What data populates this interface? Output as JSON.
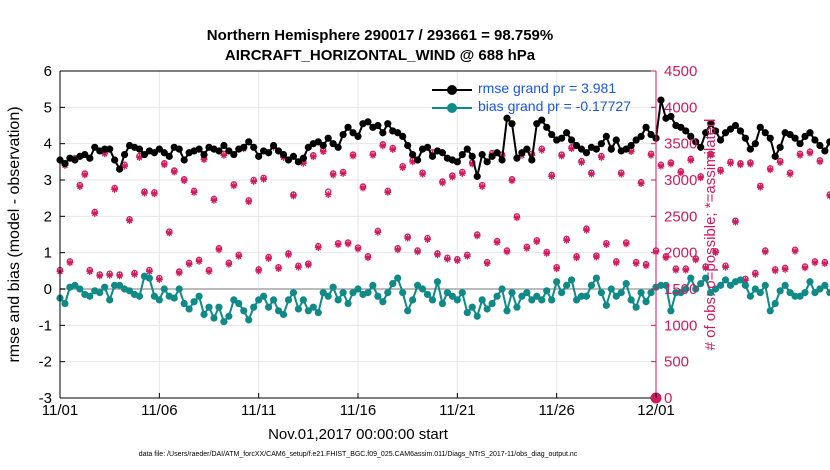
{
  "titles": {
    "line1": "Northern Hemisphere 290017 / 293661 = 98.759%",
    "line2": "AIRCRAFT_HORIZONTAL_WIND @ 688 hPa"
  },
  "xlabel_start": "Nov.01,2017 00:00:00 start",
  "footnote": "data file: /Users/raeder/DAI/ATM_forcXX/CAM6_setup/f.e21.FHIST_BGC.f09_025.CAM6assim.011/Diags_NTrS_2017-11/obs_diag_output.nc",
  "colors": {
    "rmse": "#000000",
    "bias": "#0f8a87",
    "obs": "#d01b5e",
    "legend_text": "#1a56e8",
    "zero_line": "#bbbbbb"
  },
  "chart_data": {
    "type": "line",
    "title": "Northern Hemisphere 290017 / 293661 = 98.759%  AIRCRAFT_HORIZONTAL_WIND @ 688 hPa",
    "xlabel": "Nov.01,2017 00:00:00 start",
    "ylabel": "rmse and bias (model - observation)",
    "y2label": "# of obs: o=possible; *=assimilated",
    "xlim": [
      0,
      30
    ],
    "ylim": [
      -3,
      6
    ],
    "y2lim": [
      0,
      4500
    ],
    "xticks": [
      0,
      5,
      10,
      15,
      20,
      25,
      30
    ],
    "xticklabels": [
      "11/01",
      "11/06",
      "11/11",
      "11/16",
      "11/21",
      "11/26",
      "12/01"
    ],
    "yticks": [
      -3,
      -2,
      -1,
      0,
      1,
      2,
      3,
      4,
      5,
      6
    ],
    "y2ticks": [
      0,
      500,
      1000,
      1500,
      2000,
      2500,
      3000,
      3500,
      4000,
      4500
    ],
    "grid": true,
    "legend": [
      "rmse grand pr = 3.981",
      "bias grand pr = -0.17727"
    ],
    "legend_position": "top-right",
    "series": [
      {
        "name": "rmse",
        "x_step": 0.25,
        "values": [
          3.55,
          3.45,
          3.6,
          3.55,
          3.65,
          3.7,
          3.6,
          3.9,
          3.8,
          3.85,
          3.85,
          3.55,
          3.3,
          3.7,
          3.95,
          3.9,
          3.85,
          3.7,
          3.8,
          3.75,
          3.85,
          3.75,
          3.65,
          3.9,
          3.85,
          3.55,
          3.75,
          3.8,
          3.85,
          3.7,
          3.9,
          3.85,
          3.8,
          3.95,
          3.8,
          3.7,
          3.85,
          3.9,
          4.05,
          3.9,
          3.65,
          3.8,
          3.75,
          3.95,
          3.8,
          3.7,
          3.55,
          3.65,
          3.5,
          3.6,
          3.9,
          4.0,
          4.05,
          3.95,
          4.15,
          4.0,
          3.9,
          4.25,
          4.45,
          4.3,
          4.2,
          4.55,
          4.6,
          4.45,
          4.5,
          4.3,
          4.55,
          4.35,
          4.3,
          4.2,
          3.95,
          3.7,
          3.55,
          3.85,
          3.9,
          3.65,
          3.8,
          3.75,
          3.6,
          3.55,
          3.5,
          3.7,
          3.85,
          3.65,
          3.1,
          3.7,
          3.5,
          3.65,
          3.75,
          3.55,
          4.7,
          4.55,
          3.6,
          3.75,
          3.85,
          3.55,
          4.55,
          4.65,
          4.45,
          4.25,
          4.1,
          4.15,
          4.3,
          4.1,
          3.95,
          3.85,
          3.75,
          3.9,
          3.85,
          4.0,
          4.2,
          3.85,
          4.1,
          3.8,
          3.85,
          3.95,
          4.1,
          4.2,
          4.45,
          4.25,
          4.15,
          5.2,
          4.7,
          4.75,
          4.5,
          4.45,
          4.35,
          4.2,
          4.05,
          3.9,
          4.3,
          4.55,
          4.35,
          4.1,
          4.3,
          4.4,
          4.5,
          4.35,
          4.15,
          3.85,
          4.0,
          4.45,
          4.3,
          4.15,
          3.65,
          3.9,
          4.3,
          4.25,
          4.15,
          4.0,
          4.2,
          4.3,
          4.1,
          3.95,
          3.8,
          4.05,
          4.25,
          4.1,
          3.9,
          3.85,
          4.15,
          3.8,
          3.85
        ]
      },
      {
        "name": "bias",
        "x_step": 0.25,
        "values": [
          -0.25,
          -0.4,
          0.05,
          0.1,
          0.0,
          -0.15,
          -0.2,
          -0.05,
          -0.1,
          0.05,
          -0.3,
          0.1,
          0.1,
          0.0,
          -0.05,
          -0.15,
          -0.2,
          0.35,
          0.3,
          -0.2,
          -0.3,
          0.0,
          -0.2,
          -0.25,
          0.0,
          -0.4,
          -0.55,
          -0.35,
          -0.2,
          -0.7,
          -0.5,
          -0.8,
          -0.5,
          -0.9,
          -0.75,
          -0.3,
          -0.4,
          -0.6,
          -0.85,
          -0.5,
          -0.3,
          -0.2,
          -0.5,
          -0.3,
          -0.6,
          -0.7,
          -0.3,
          -0.1,
          -0.55,
          -0.3,
          -0.6,
          -0.5,
          -0.65,
          -0.1,
          -0.2,
          0.05,
          -0.3,
          -0.1,
          -0.4,
          -0.1,
          0.0,
          -0.15,
          -0.1,
          0.1,
          -0.2,
          -0.35,
          -0.1,
          0.15,
          0.3,
          -0.1,
          -0.6,
          -0.3,
          0.1,
          0.0,
          -0.15,
          -0.3,
          0.2,
          -0.4,
          -0.1,
          -0.2,
          -0.3,
          -0.1,
          -0.65,
          -0.5,
          -0.75,
          -0.3,
          -0.55,
          -0.4,
          -0.2,
          0.0,
          -0.6,
          -0.1,
          -0.5,
          -0.2,
          -0.1,
          -0.3,
          -0.2,
          -0.3,
          -0.05,
          -0.3,
          0.2,
          -0.1,
          0.1,
          0.25,
          -0.3,
          -0.2,
          -0.2,
          0.1,
          0.3,
          -0.1,
          -0.45,
          0.0,
          -0.2,
          -0.1,
          0.15,
          -0.3,
          -0.5,
          -0.1,
          -0.35,
          -0.1,
          0.05,
          0.1,
          0.1,
          -0.6,
          -0.1,
          -0.1,
          0.0,
          0.3,
          0.0,
          0.15,
          0.3,
          -0.1,
          0.0,
          0.1,
          0.25,
          0.1,
          0.2,
          0.25,
          0.1,
          -0.2,
          0.0,
          -0.1,
          0.1,
          -0.6,
          -0.4,
          -0.05,
          0.1,
          -0.1,
          -0.2,
          -0.2,
          -0.1,
          0.2,
          -0.1,
          0.0,
          0.1,
          -0.1,
          -0.2,
          0.25,
          0.05,
          -0.05,
          0.0,
          -0.15,
          -0.1,
          0.15,
          0.1
        ]
      },
      {
        "name": "obs_possible",
        "marker": "o",
        "x_step": 0.25,
        "axis": "right",
        "values": [
          1760,
          3220,
          1880,
          3300,
          2930,
          3090,
          1760,
          2560,
          1700,
          3380,
          1710,
          2890,
          1700,
          3210,
          2460,
          1720,
          3330,
          2840,
          1760,
          2830,
          1650,
          3230,
          2290,
          3130,
          1740,
          3010,
          1860,
          2850,
          1900,
          3300,
          1760,
          2740,
          2060,
          3360,
          1860,
          2940,
          1970,
          3450,
          2720,
          3000,
          1770,
          3030,
          1940,
          3470,
          1800,
          3330,
          1990,
          2800,
          1820,
          3250,
          1850,
          3340,
          2090,
          3410,
          2840,
          3090,
          2130,
          3110,
          2140,
          3350,
          2070,
          2910,
          1950,
          3360,
          2300,
          3490,
          2850,
          3440,
          2060,
          3190,
          2220,
          3270,
          2030,
          3100,
          2200,
          3380,
          1990,
          2980,
          1930,
          3060,
          1910,
          3110,
          1970,
          3240,
          2250,
          2930,
          1870,
          3370,
          2160,
          3350,
          2030,
          3010,
          2500,
          3360,
          2080,
          3360,
          2170,
          3430,
          2010,
          3070,
          1800,
          3350,
          2190,
          3450,
          1950,
          3260,
          2330,
          3100,
          1960,
          3330,
          2130,
          3440,
          1880,
          3100,
          2140,
          3410,
          1870,
          2970,
          1840,
          3360,
          2030,
          3210,
          1950,
          3240,
          1780,
          3120,
          1780,
          3290,
          1920,
          3050,
          1810,
          3360,
          2020,
          3140,
          1820,
          3250,
          2440,
          3230,
          1640,
          3240,
          1720,
          2920,
          2030,
          3160,
          1770,
          3260,
          1790,
          3100,
          2040,
          3360,
          1810,
          3390,
          1880,
          3270,
          1870,
          2800,
          1800,
          3220,
          1990,
          3320,
          1910,
          3170,
          1780,
          3310,
          1820,
          3440,
          1940,
          3190
        ]
      },
      {
        "name": "obs_assimilated",
        "marker": "*",
        "x_step": 0.25,
        "axis": "right",
        "values": [
          1740,
          3200,
          1860,
          3280,
          2910,
          3070,
          1740,
          2540,
          1680,
          3360,
          1690,
          2870,
          1680,
          3190,
          2440,
          1700,
          3310,
          2820,
          1740,
          2810,
          1630,
          3210,
          2270,
          3110,
          1720,
          2990,
          1840,
          2830,
          1880,
          3280,
          1740,
          2720,
          2040,
          3340,
          1840,
          2920,
          1950,
          3430,
          2700,
          2980,
          1750,
          3010,
          1920,
          3450,
          1780,
          3310,
          1970,
          2780,
          1800,
          3230,
          1830,
          3320,
          2070,
          3390,
          2800,
          3070,
          2110,
          3090,
          2120,
          3330,
          2050,
          2890,
          1930,
          3340,
          2280,
          3470,
          2830,
          3420,
          2040,
          3170,
          2200,
          3250,
          2010,
          3080,
          2180,
          3360,
          1970,
          2960,
          1910,
          3040,
          1890,
          3090,
          1950,
          3220,
          2230,
          2910,
          1850,
          3350,
          2140,
          3330,
          2010,
          2990,
          2480,
          3340,
          2060,
          3340,
          2150,
          3410,
          1990,
          3050,
          1780,
          3330,
          2170,
          3430,
          1930,
          3240,
          2310,
          3080,
          1940,
          3310,
          2110,
          3420,
          1860,
          3080,
          2120,
          3390,
          1850,
          2950,
          1820,
          3340,
          2010,
          3190,
          1930,
          3220,
          1760,
          3100,
          1760,
          3270,
          1900,
          3030,
          1790,
          3340,
          2000,
          3120,
          1800,
          3230,
          2420,
          3210,
          1620,
          3220,
          1700,
          2900,
          2010,
          3140,
          1750,
          3240,
          1770,
          3080,
          2020,
          3340,
          1790,
          3370,
          1860,
          3250,
          1850,
          2780,
          1780,
          3200,
          1970,
          3300,
          1890,
          3150,
          1760,
          3290,
          1800,
          3420,
          1920,
          3170
        ]
      }
    ],
    "extra_marker": {
      "x": 30,
      "y2": 0
    }
  }
}
